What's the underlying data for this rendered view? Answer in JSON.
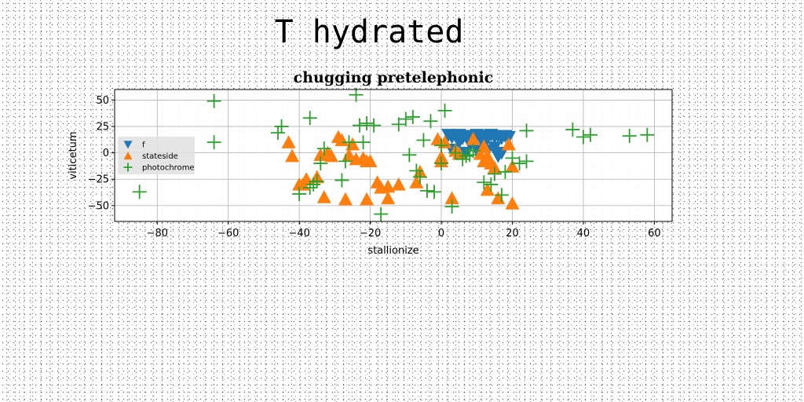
{
  "page": {
    "title": "T hydrated"
  },
  "chart_data": {
    "type": "scatter",
    "title": "chugging pretelephonic",
    "xlabel": "stallionize",
    "ylabel": "viticetum",
    "xlim": [
      -92,
      65
    ],
    "ylim": [
      -65,
      60
    ],
    "xticks": [
      -80,
      -60,
      -40,
      -20,
      0,
      20,
      40,
      60
    ],
    "yticks": [
      -50,
      -25,
      0,
      25,
      50
    ],
    "grid": true,
    "legend": {
      "placement": "center-left"
    },
    "series": [
      {
        "name": "f",
        "marker": "triangle-down",
        "color": "#1f77b4",
        "points": [
          [
            2,
            17
          ],
          [
            3,
            15
          ],
          [
            4,
            16
          ],
          [
            5,
            17
          ],
          [
            6,
            14
          ],
          [
            7,
            16
          ],
          [
            8,
            15
          ],
          [
            9,
            16
          ],
          [
            10,
            17
          ],
          [
            11,
            15
          ],
          [
            12,
            16
          ],
          [
            13,
            14
          ],
          [
            14,
            17
          ],
          [
            15,
            15
          ],
          [
            16,
            16
          ],
          [
            17,
            14
          ],
          [
            18,
            16
          ],
          [
            19,
            15
          ],
          [
            5,
            10
          ],
          [
            8,
            9
          ],
          [
            12,
            8
          ],
          [
            15,
            5
          ],
          [
            17,
            0
          ],
          [
            3,
            3
          ],
          [
            10,
            3
          ],
          [
            13,
            2
          ],
          [
            16,
            -3
          ],
          [
            7,
            0
          ]
        ]
      },
      {
        "name": "stateside",
        "marker": "triangle-up",
        "color": "#ff7f0e",
        "points": [
          [
            -43,
            10
          ],
          [
            -42,
            -3
          ],
          [
            -40,
            -30
          ],
          [
            -39,
            -30
          ],
          [
            -38,
            -25
          ],
          [
            -35,
            -23
          ],
          [
            -34,
            -2
          ],
          [
            -33,
            -42
          ],
          [
            -32,
            0
          ],
          [
            -31,
            -3
          ],
          [
            -29,
            15
          ],
          [
            -28,
            12
          ],
          [
            -27,
            -44
          ],
          [
            -26,
            -2
          ],
          [
            -25,
            8
          ],
          [
            -24,
            -6
          ],
          [
            -22,
            -5
          ],
          [
            -21,
            -8
          ],
          [
            -21,
            -44
          ],
          [
            -20,
            -8
          ],
          [
            -18,
            -28
          ],
          [
            -17,
            -33
          ],
          [
            -15,
            -43
          ],
          [
            -15,
            -32
          ],
          [
            -12,
            -30
          ],
          [
            -7,
            -28
          ],
          [
            -6,
            -18
          ],
          [
            0,
            -4
          ],
          [
            0,
            -8
          ],
          [
            -1,
            13
          ],
          [
            1,
            10
          ],
          [
            3,
            -43
          ],
          [
            4,
            2
          ],
          [
            5,
            -1
          ],
          [
            9,
            13
          ],
          [
            11,
            -1
          ],
          [
            12,
            6
          ],
          [
            12,
            -8
          ],
          [
            13,
            -3
          ],
          [
            13,
            -35
          ],
          [
            14,
            -10
          ],
          [
            15,
            -14
          ],
          [
            16,
            -43
          ],
          [
            19,
            8
          ],
          [
            20,
            -48
          ],
          [
            20,
            -13
          ]
        ]
      },
      {
        "name": "photochrome",
        "marker": "plus",
        "color": "#2ca02c",
        "points": [
          [
            -85,
            -37
          ],
          [
            -64,
            49
          ],
          [
            -64,
            10
          ],
          [
            -46,
            19
          ],
          [
            -45,
            25
          ],
          [
            -40,
            -39
          ],
          [
            -37,
            -33
          ],
          [
            -37,
            33
          ],
          [
            -36,
            -30
          ],
          [
            -35,
            -27
          ],
          [
            -34,
            -10
          ],
          [
            -33,
            4
          ],
          [
            -28,
            -26
          ],
          [
            -27,
            -8
          ],
          [
            -26,
            10
          ],
          [
            -24,
            55
          ],
          [
            -23,
            26
          ],
          [
            -22,
            10
          ],
          [
            -21,
            28
          ],
          [
            -19,
            26
          ],
          [
            -17,
            -58
          ],
          [
            -12,
            27
          ],
          [
            -10,
            32
          ],
          [
            -9,
            -2
          ],
          [
            -8,
            34
          ],
          [
            -7,
            -17
          ],
          [
            -6,
            -23
          ],
          [
            -5,
            12
          ],
          [
            -4,
            -36
          ],
          [
            -3,
            30
          ],
          [
            -2,
            -37
          ],
          [
            0,
            -10
          ],
          [
            0,
            7
          ],
          [
            1,
            40
          ],
          [
            3,
            -51
          ],
          [
            4,
            0
          ],
          [
            6,
            -6
          ],
          [
            7,
            -3
          ],
          [
            8,
            -2
          ],
          [
            9,
            2
          ],
          [
            12,
            -28
          ],
          [
            14,
            -30
          ],
          [
            15,
            -20
          ],
          [
            17,
            -40
          ],
          [
            18,
            -18
          ],
          [
            20,
            -5
          ],
          [
            22,
            -10
          ],
          [
            24,
            -8
          ],
          [
            24,
            21
          ],
          [
            37,
            22
          ],
          [
            40,
            15
          ],
          [
            42,
            17
          ],
          [
            53,
            16
          ],
          [
            58,
            17
          ]
        ]
      }
    ]
  }
}
